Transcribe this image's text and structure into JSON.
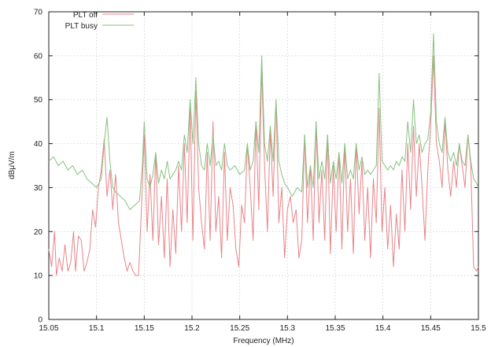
{
  "chart_data": {
    "type": "line",
    "title": "",
    "xlabel": "Frequency (MHz)",
    "ylabel": "dBμV/m",
    "xlim": [
      15.05,
      15.5
    ],
    "ylim": [
      0,
      70
    ],
    "x_ticks": [
      "15.05",
      "15.1",
      "15.15",
      "15.2",
      "15.25",
      "15.3",
      "15.35",
      "15.4",
      "15.45",
      "15.5"
    ],
    "y_ticks": [
      "0",
      "10",
      "20",
      "30",
      "40",
      "50",
      "60",
      "70"
    ],
    "grid": true,
    "legend_position": "top-left",
    "series": [
      {
        "name": "PLT off",
        "color": "#e8848a",
        "points": [
          [
            15.05,
            16
          ],
          [
            15.053,
            12
          ],
          [
            15.056,
            20
          ],
          [
            15.058,
            10
          ],
          [
            15.061,
            14
          ],
          [
            15.064,
            11
          ],
          [
            15.067,
            17
          ],
          [
            15.07,
            11
          ],
          [
            15.073,
            13
          ],
          [
            15.076,
            20
          ],
          [
            15.078,
            11
          ],
          [
            15.081,
            19
          ],
          [
            15.084,
            18
          ],
          [
            15.087,
            11
          ],
          [
            15.09,
            13
          ],
          [
            15.093,
            16
          ],
          [
            15.096,
            25
          ],
          [
            15.099,
            21
          ],
          [
            15.102,
            30
          ],
          [
            15.105,
            34
          ],
          [
            15.108,
            41
          ],
          [
            15.111,
            28
          ],
          [
            15.114,
            34
          ],
          [
            15.117,
            25
          ],
          [
            15.12,
            33
          ],
          [
            15.123,
            22
          ],
          [
            15.126,
            18
          ],
          [
            15.129,
            14
          ],
          [
            15.132,
            11
          ],
          [
            15.135,
            13
          ],
          [
            15.138,
            11
          ],
          [
            15.141,
            10
          ],
          [
            15.144,
            10
          ],
          [
            15.147,
            25
          ],
          [
            15.15,
            42
          ],
          [
            15.153,
            20
          ],
          [
            15.156,
            33
          ],
          [
            15.159,
            18
          ],
          [
            15.162,
            38
          ],
          [
            15.165,
            17
          ],
          [
            15.168,
            28
          ],
          [
            15.171,
            14
          ],
          [
            15.174,
            32
          ],
          [
            15.177,
            12
          ],
          [
            15.18,
            25
          ],
          [
            15.183,
            15
          ],
          [
            15.186,
            35
          ],
          [
            15.189,
            20
          ],
          [
            15.192,
            40
          ],
          [
            15.195,
            22
          ],
          [
            15.198,
            48
          ],
          [
            15.201,
            18
          ],
          [
            15.204,
            52
          ],
          [
            15.207,
            30
          ],
          [
            15.21,
            22
          ],
          [
            15.213,
            16
          ],
          [
            15.216,
            38
          ],
          [
            15.219,
            18
          ],
          [
            15.222,
            45
          ],
          [
            15.225,
            20
          ],
          [
            15.228,
            28
          ],
          [
            15.231,
            14
          ],
          [
            15.234,
            38
          ],
          [
            15.237,
            18
          ],
          [
            15.24,
            30
          ],
          [
            15.243,
            26
          ],
          [
            15.246,
            16
          ],
          [
            15.249,
            12
          ],
          [
            15.252,
            26
          ],
          [
            15.255,
            22
          ],
          [
            15.258,
            40
          ],
          [
            15.261,
            30
          ],
          [
            15.264,
            18
          ],
          [
            15.267,
            45
          ],
          [
            15.27,
            25
          ],
          [
            15.273,
            57
          ],
          [
            15.276,
            35
          ],
          [
            15.279,
            20
          ],
          [
            15.282,
            43
          ],
          [
            15.285,
            28
          ],
          [
            15.288,
            50
          ],
          [
            15.291,
            22
          ],
          [
            15.294,
            30
          ],
          [
            15.297,
            14
          ],
          [
            15.3,
            25
          ],
          [
            15.303,
            28
          ],
          [
            15.306,
            22
          ],
          [
            15.309,
            25
          ],
          [
            15.312,
            14
          ],
          [
            15.315,
            18
          ],
          [
            15.318,
            42
          ],
          [
            15.321,
            22
          ],
          [
            15.324,
            35
          ],
          [
            15.327,
            18
          ],
          [
            15.33,
            45
          ],
          [
            15.333,
            22
          ],
          [
            15.336,
            34
          ],
          [
            15.339,
            18
          ],
          [
            15.342,
            42
          ],
          [
            15.345,
            15
          ],
          [
            15.348,
            35
          ],
          [
            15.351,
            20
          ],
          [
            15.354,
            38
          ],
          [
            15.357,
            16
          ],
          [
            15.36,
            40
          ],
          [
            15.363,
            20
          ],
          [
            15.366,
            32
          ],
          [
            15.369,
            15
          ],
          [
            15.372,
            40
          ],
          [
            15.375,
            24
          ],
          [
            15.378,
            36
          ],
          [
            15.381,
            18
          ],
          [
            15.384,
            30
          ],
          [
            15.387,
            14
          ],
          [
            15.39,
            32
          ],
          [
            15.393,
            22
          ],
          [
            15.396,
            48
          ],
          [
            15.399,
            20
          ],
          [
            15.402,
            30
          ],
          [
            15.405,
            16
          ],
          [
            15.408,
            26
          ],
          [
            15.411,
            12
          ],
          [
            15.414,
            24
          ],
          [
            15.417,
            16
          ],
          [
            15.42,
            34
          ],
          [
            15.423,
            20
          ],
          [
            15.426,
            40
          ],
          [
            15.429,
            25
          ],
          [
            15.432,
            44
          ],
          [
            15.435,
            28
          ],
          [
            15.438,
            40
          ],
          [
            15.441,
            30
          ],
          [
            15.444,
            18
          ],
          [
            15.447,
            34
          ],
          [
            15.45,
            44
          ],
          [
            15.453,
            60
          ],
          [
            15.456,
            40
          ],
          [
            15.459,
            36
          ],
          [
            15.462,
            30
          ],
          [
            15.465,
            45
          ],
          [
            15.468,
            34
          ],
          [
            15.471,
            28
          ],
          [
            15.474,
            36
          ],
          [
            15.477,
            30
          ],
          [
            15.48,
            40
          ],
          [
            15.483,
            35
          ],
          [
            15.486,
            30
          ],
          [
            15.489,
            42
          ],
          [
            15.492,
            35
          ],
          [
            15.495,
            12
          ],
          [
            15.498,
            11
          ],
          [
            15.5,
            12
          ]
        ]
      },
      {
        "name": "PLT busy",
        "color": "#86c27e",
        "points": [
          [
            15.05,
            36
          ],
          [
            15.055,
            37
          ],
          [
            15.06,
            35
          ],
          [
            15.065,
            36
          ],
          [
            15.07,
            34
          ],
          [
            15.075,
            35
          ],
          [
            15.08,
            33
          ],
          [
            15.085,
            34
          ],
          [
            15.09,
            32
          ],
          [
            15.095,
            31
          ],
          [
            15.1,
            30
          ],
          [
            15.105,
            32
          ],
          [
            15.108,
            40
          ],
          [
            15.111,
            46
          ],
          [
            15.114,
            36
          ],
          [
            15.117,
            30
          ],
          [
            15.12,
            29
          ],
          [
            15.125,
            28
          ],
          [
            15.13,
            27
          ],
          [
            15.135,
            25
          ],
          [
            15.14,
            26
          ],
          [
            15.145,
            27
          ],
          [
            15.148,
            35
          ],
          [
            15.15,
            45
          ],
          [
            15.153,
            32
          ],
          [
            15.156,
            30
          ],
          [
            15.159,
            33
          ],
          [
            15.162,
            38
          ],
          [
            15.165,
            31
          ],
          [
            15.168,
            34
          ],
          [
            15.171,
            32
          ],
          [
            15.174,
            36
          ],
          [
            15.177,
            32
          ],
          [
            15.18,
            33
          ],
          [
            15.183,
            34
          ],
          [
            15.186,
            36
          ],
          [
            15.189,
            34
          ],
          [
            15.192,
            42
          ],
          [
            15.195,
            38
          ],
          [
            15.198,
            50
          ],
          [
            15.201,
            40
          ],
          [
            15.204,
            55
          ],
          [
            15.207,
            40
          ],
          [
            15.21,
            35
          ],
          [
            15.213,
            34
          ],
          [
            15.216,
            40
          ],
          [
            15.219,
            35
          ],
          [
            15.222,
            42
          ],
          [
            15.225,
            35
          ],
          [
            15.228,
            36
          ],
          [
            15.231,
            34
          ],
          [
            15.234,
            40
          ],
          [
            15.237,
            35
          ],
          [
            15.24,
            34
          ],
          [
            15.245,
            35
          ],
          [
            15.25,
            33
          ],
          [
            15.255,
            34
          ],
          [
            15.258,
            40
          ],
          [
            15.261,
            34
          ],
          [
            15.264,
            36
          ],
          [
            15.267,
            45
          ],
          [
            15.27,
            38
          ],
          [
            15.273,
            60
          ],
          [
            15.276,
            40
          ],
          [
            15.279,
            36
          ],
          [
            15.282,
            44
          ],
          [
            15.285,
            36
          ],
          [
            15.288,
            50
          ],
          [
            15.291,
            36
          ],
          [
            15.294,
            33
          ],
          [
            15.297,
            31
          ],
          [
            15.3,
            30
          ],
          [
            15.305,
            28
          ],
          [
            15.31,
            30
          ],
          [
            15.315,
            29
          ],
          [
            15.318,
            42
          ],
          [
            15.321,
            30
          ],
          [
            15.324,
            35
          ],
          [
            15.327,
            30
          ],
          [
            15.33,
            45
          ],
          [
            15.333,
            32
          ],
          [
            15.336,
            36
          ],
          [
            15.339,
            32
          ],
          [
            15.342,
            42
          ],
          [
            15.345,
            31
          ],
          [
            15.348,
            36
          ],
          [
            15.351,
            32
          ],
          [
            15.354,
            38
          ],
          [
            15.357,
            31
          ],
          [
            15.36,
            40
          ],
          [
            15.363,
            32
          ],
          [
            15.366,
            34
          ],
          [
            15.369,
            32
          ],
          [
            15.372,
            40
          ],
          [
            15.375,
            34
          ],
          [
            15.378,
            37
          ],
          [
            15.381,
            33
          ],
          [
            15.384,
            34
          ],
          [
            15.387,
            33
          ],
          [
            15.39,
            34
          ],
          [
            15.393,
            35
          ],
          [
            15.396,
            56
          ],
          [
            15.399,
            36
          ],
          [
            15.402,
            35
          ],
          [
            15.405,
            34
          ],
          [
            15.408,
            35
          ],
          [
            15.411,
            34
          ],
          [
            15.414,
            36
          ],
          [
            15.417,
            35
          ],
          [
            15.42,
            37
          ],
          [
            15.423,
            36
          ],
          [
            15.426,
            45
          ],
          [
            15.429,
            38
          ],
          [
            15.432,
            50
          ],
          [
            15.435,
            40
          ],
          [
            15.438,
            42
          ],
          [
            15.441,
            38
          ],
          [
            15.444,
            40
          ],
          [
            15.447,
            41
          ],
          [
            15.45,
            47
          ],
          [
            15.453,
            65
          ],
          [
            15.456,
            45
          ],
          [
            15.459,
            40
          ],
          [
            15.462,
            38
          ],
          [
            15.465,
            46
          ],
          [
            15.468,
            38
          ],
          [
            15.471,
            36
          ],
          [
            15.474,
            38
          ],
          [
            15.477,
            35
          ],
          [
            15.48,
            40
          ],
          [
            15.483,
            36
          ],
          [
            15.486,
            35
          ],
          [
            15.489,
            42
          ],
          [
            15.492,
            36
          ],
          [
            15.495,
            32
          ],
          [
            15.498,
            31
          ],
          [
            15.5,
            30
          ]
        ]
      }
    ]
  }
}
